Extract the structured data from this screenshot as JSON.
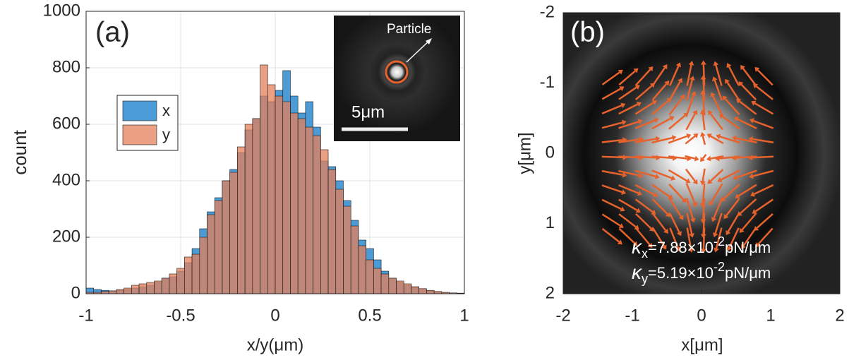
{
  "chart_data": [
    {
      "type": "histogram",
      "panel_label": "(a)",
      "xlabel": "x/y(μm)",
      "ylabel": "count",
      "bins": [
        -1,
        -0.96,
        -0.92,
        -0.88,
        -0.84,
        -0.8,
        -0.76,
        -0.72,
        -0.68,
        -0.64,
        -0.6,
        -0.56,
        -0.52,
        -0.48,
        -0.44,
        -0.4,
        -0.36,
        -0.32,
        -0.28,
        -0.24,
        -0.2,
        -0.16,
        -0.12,
        -0.08,
        -0.04,
        0,
        0.04,
        0.08,
        0.12,
        0.16,
        0.2,
        0.24,
        0.28,
        0.32,
        0.36,
        0.4,
        0.44,
        0.48,
        0.52,
        0.56,
        0.6,
        0.64,
        0.68,
        0.72,
        0.76,
        0.8,
        0.84,
        0.88,
        0.92,
        0.96,
        1
      ],
      "series": [
        {
          "name": "x",
          "color": "#4a9bd6",
          "values": [
            20,
            15,
            12,
            10,
            12,
            15,
            20,
            25,
            30,
            40,
            55,
            60,
            80,
            110,
            160,
            230,
            290,
            340,
            400,
            440,
            500,
            580,
            620,
            700,
            680,
            720,
            790,
            700,
            640,
            680,
            590,
            470,
            450,
            400,
            330,
            260,
            190,
            160,
            120,
            80,
            55,
            40,
            30,
            22,
            15,
            10,
            6,
            4,
            3,
            2
          ]
        },
        {
          "name": "y",
          "color": "#e5805a",
          "values": [
            5,
            5,
            8,
            10,
            15,
            20,
            30,
            35,
            40,
            45,
            55,
            70,
            90,
            130,
            140,
            200,
            280,
            330,
            400,
            430,
            520,
            600,
            620,
            810,
            740,
            700,
            680,
            640,
            620,
            590,
            560,
            510,
            440,
            370,
            310,
            240,
            170,
            120,
            90,
            70,
            55,
            45,
            35,
            25,
            18,
            12,
            8,
            5,
            3,
            2
          ]
        }
      ],
      "xlim": [
        -1,
        1
      ],
      "ylim": [
        0,
        1000
      ],
      "xticks": [
        -1,
        -0.5,
        0,
        0.5,
        1
      ],
      "yticks": [
        0,
        200,
        400,
        600,
        800,
        1000
      ],
      "grid": true,
      "legend": "upper left",
      "inset": {
        "label": "Particle",
        "scale_bar": "5μm"
      }
    },
    {
      "type": "quiver",
      "panel_label": "(b)",
      "xlabel": "x[μm]",
      "ylabel": "y[μm]",
      "x": [
        -1.4,
        -1.16,
        -0.92,
        -0.68,
        -0.44,
        -0.2,
        0.04,
        0.28,
        0.52,
        0.76,
        1.0
      ],
      "y": [
        -1.0,
        -0.79,
        -0.58,
        -0.37,
        -0.16,
        0.05,
        0.26,
        0.47,
        0.68,
        0.89,
        1.1
      ],
      "color": "#e8622c",
      "xlim": [
        -2,
        2
      ],
      "ylim": [
        2,
        -2
      ],
      "xticks": [
        -2,
        -1,
        0,
        1,
        2
      ],
      "yticks": [
        -2,
        -1,
        0,
        1,
        2
      ],
      "annotations": [
        {
          "symbol": "κ",
          "sub": "x",
          "text": "=7.88×10",
          "sup": "-2",
          "unit": "pN/μm"
        },
        {
          "symbol": "κ",
          "sub": "y",
          "text": "=5.19×10",
          "sup": "-2",
          "unit": "pN/μm"
        }
      ]
    }
  ]
}
